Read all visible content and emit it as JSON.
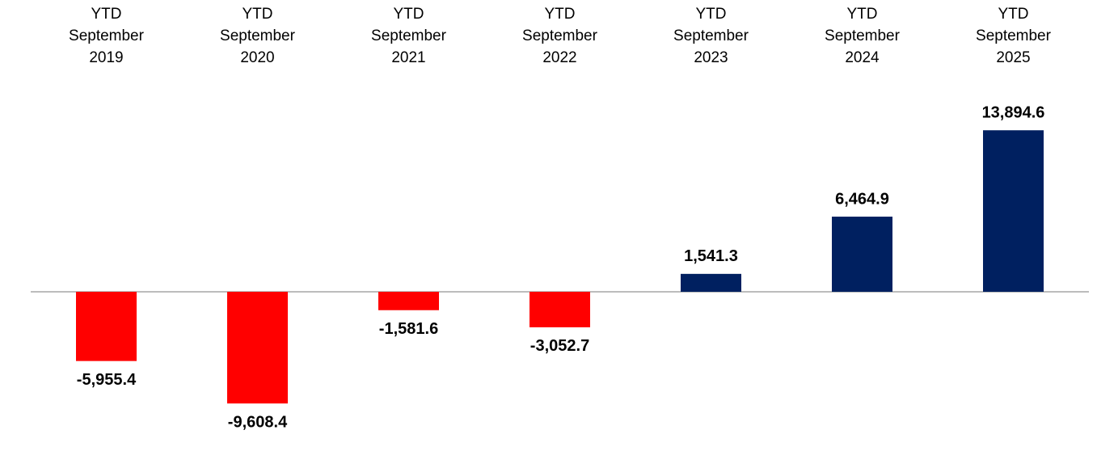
{
  "chart_data": {
    "type": "bar",
    "categories": [
      "YTD September 2019",
      "YTD September 2020",
      "YTD September 2021",
      "YTD September 2022",
      "YTD September 2023",
      "YTD September 2024",
      "YTD September 2025"
    ],
    "values": [
      -5955.4,
      -9608.4,
      -1581.6,
      -3052.7,
      1541.3,
      6464.9,
      13894.6
    ],
    "value_labels": [
      "-5,955.4",
      "-9,608.4",
      "-1,581.6",
      "-3,052.7",
      "1,541.3",
      "6,464.9",
      "13,894.6"
    ],
    "colors": [
      "#ff0000",
      "#ff0000",
      "#ff0000",
      "#ff0000",
      "#002060",
      "#002060",
      "#002060"
    ]
  }
}
